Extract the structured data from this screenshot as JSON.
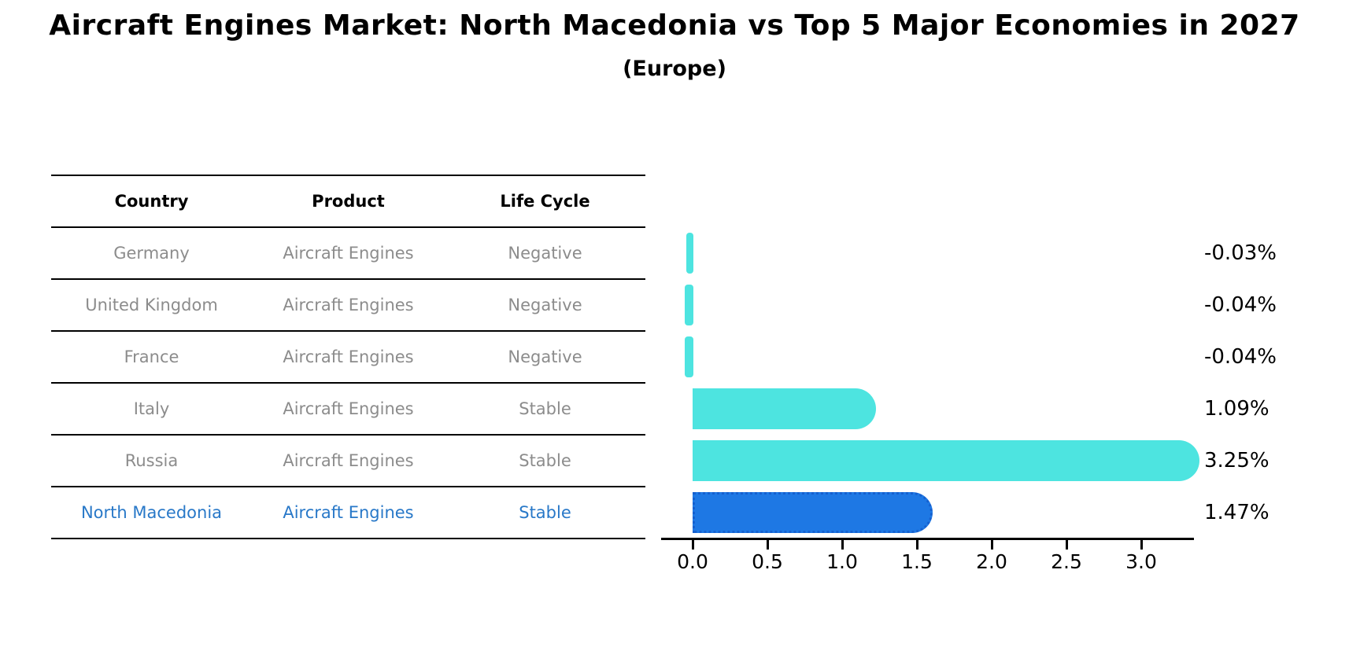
{
  "header": {
    "title": "Aircraft Engines Market: North Macedonia vs Top 5 Major Economies in 2027",
    "subtitle": "(Europe)"
  },
  "table": {
    "columns": [
      "Country",
      "Product",
      "Life Cycle"
    ],
    "rows": [
      {
        "country": "Germany",
        "product": "Aircraft Engines",
        "life_cycle": "Negative",
        "highlighted": false
      },
      {
        "country": "United Kingdom",
        "product": "Aircraft Engines",
        "life_cycle": "Negative",
        "highlighted": false
      },
      {
        "country": "France",
        "product": "Aircraft Engines",
        "life_cycle": "Negative",
        "highlighted": false
      },
      {
        "country": "Italy",
        "product": "Aircraft Engines",
        "life_cycle": "Stable",
        "highlighted": false
      },
      {
        "country": "Russia",
        "product": "Aircraft Engines",
        "life_cycle": "Stable",
        "highlighted": false
      },
      {
        "country": "North Macedonia",
        "product": "Aircraft Engines",
        "life_cycle": "Stable",
        "highlighted": true
      }
    ]
  },
  "chart_data": {
    "type": "bar",
    "orientation": "horizontal",
    "title": "Aircraft Engines Market: North Macedonia vs Top 5 Major Economies in 2027",
    "subtitle": "(Europe)",
    "categories": [
      "Germany",
      "United Kingdom",
      "France",
      "Italy",
      "Russia",
      "North Macedonia"
    ],
    "values": [
      -0.03,
      -0.04,
      -0.04,
      1.09,
      3.25,
      1.47
    ],
    "value_labels": [
      "-0.03%",
      "-0.04%",
      "-0.04%",
      "1.09%",
      "3.25%",
      "1.47%"
    ],
    "x_ticks": [
      0.0,
      0.5,
      1.0,
      1.5,
      2.0,
      2.5,
      3.0
    ],
    "x_tick_labels": [
      "0.0",
      "0.5",
      "1.0",
      "1.5",
      "2.0",
      "2.5",
      "3.0"
    ],
    "xlim": [
      -0.21,
      3.42
    ],
    "xlabel": "",
    "ylabel": "",
    "grid": false,
    "legend": null,
    "highlight_index": 5
  },
  "colors": {
    "bar": "#4de4e0",
    "highlight_bar": "#1e78e4",
    "highlight_bar_border": "#1560cf",
    "table_text": "#8c8c8c",
    "table_highlight_text": "#2878c8",
    "header_text": "#000000",
    "axis": "#000000"
  }
}
